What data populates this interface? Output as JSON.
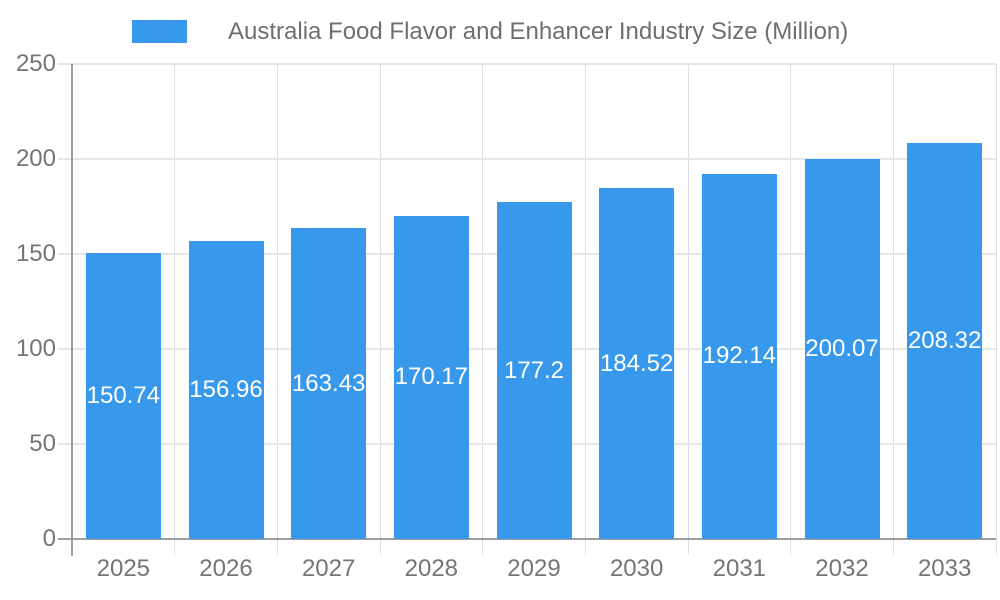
{
  "chart_data": {
    "type": "bar",
    "title": "Australia Food Flavor and Enhancer Industry Size (Million)",
    "categories": [
      "2025",
      "2026",
      "2027",
      "2028",
      "2029",
      "2030",
      "2031",
      "2032",
      "2033"
    ],
    "values": [
      150.74,
      156.96,
      163.43,
      170.17,
      177.2,
      184.52,
      192.14,
      200.07,
      208.32
    ],
    "value_labels": [
      "150.74",
      "156.96",
      "163.43",
      "170.17",
      "177.2",
      "184.52",
      "192.14",
      "200.07",
      "208.32"
    ],
    "series_name": "Australia Food Flavor and Enhancer Industry Size (Million)",
    "xlabel": "",
    "ylabel": "",
    "ylim": [
      0,
      250
    ],
    "yticks": [
      0,
      50,
      100,
      150,
      200,
      250
    ],
    "grid": true,
    "legend_position": "top",
    "colors": {
      "bar": "#3899ec",
      "value_label": "#ffffff",
      "axis_label": "#757575",
      "title": "#6e6e6e",
      "grid": "#e6e6e6",
      "grid_vertical": "#dedede",
      "axis_line": "#9e9e9e",
      "background": "#ffffff"
    }
  }
}
